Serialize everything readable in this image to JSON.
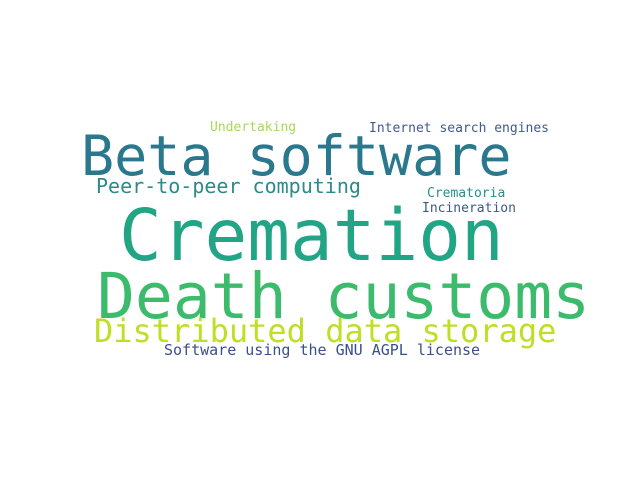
{
  "words": [
    {
      "text": "Cremation",
      "color": "#21a585"
    },
    {
      "text": "Death customs",
      "color": "#3dbb6c"
    },
    {
      "text": "Beta software",
      "color": "#2a788e"
    },
    {
      "text": "Distributed data storage",
      "color": "#bddf26"
    },
    {
      "text": "Peer-to-peer computing",
      "color": "#2c8a8b"
    },
    {
      "text": "Software using the GNU AGPL license",
      "color": "#3b4f8a"
    },
    {
      "text": "Internet search engines",
      "color": "#3f5c8a"
    },
    {
      "text": "Crematoria",
      "color": "#2a8f8a"
    },
    {
      "text": "Incineration",
      "color": "#3a5a8c"
    },
    {
      "text": "Undertaking",
      "color": "#a9d85a"
    }
  ]
}
